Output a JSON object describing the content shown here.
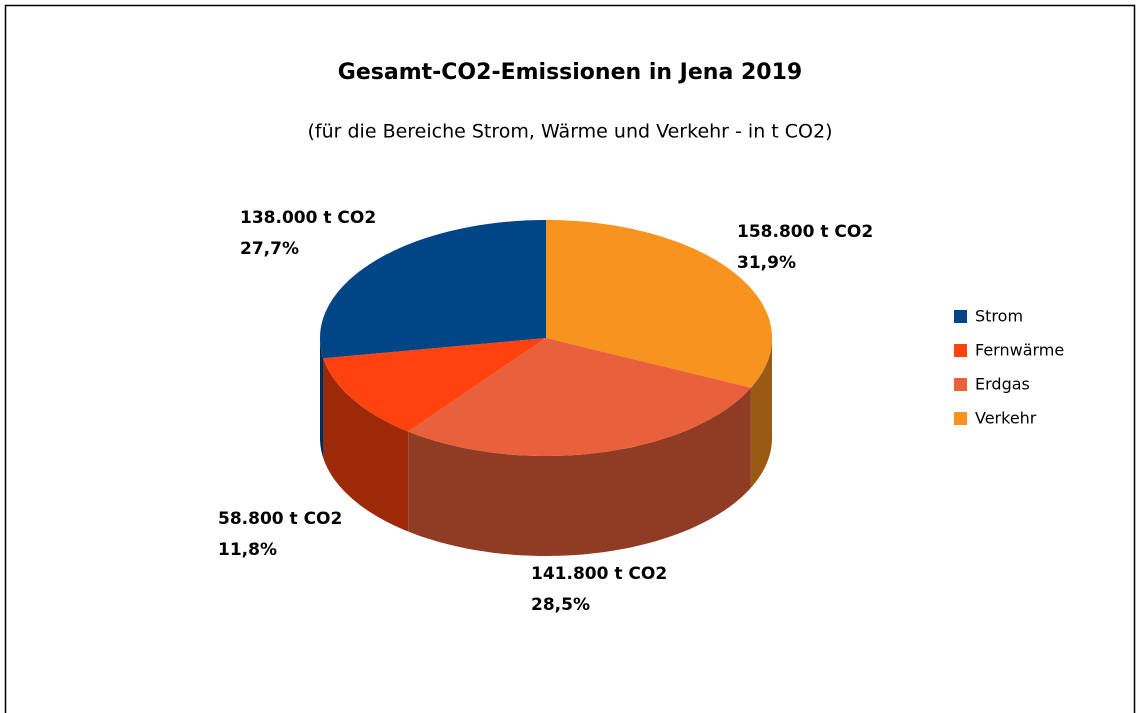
{
  "chart_data": {
    "type": "pie3d",
    "title": "Gesamt-CO2-Emissionen in Jena 2019",
    "subtitle": "(für die Bereiche Strom, Wärme und Verkehr - in t CO2)",
    "categories": [
      "Strom",
      "Fernwärme",
      "Erdgas",
      "Verkehr"
    ],
    "values": [
      138000,
      58800,
      141800,
      158800
    ],
    "value_labels": [
      "138.000 t CO2",
      "58.800 t CO2",
      "141.800 t CO2",
      "158.800 t CO2"
    ],
    "percent_labels": [
      "27,7%",
      "11,8%",
      "28,5%",
      "31,9%"
    ],
    "colors": [
      "#004586",
      "#ff420e",
      "#e8603c",
      "#f7931e"
    ],
    "legend": "right"
  }
}
